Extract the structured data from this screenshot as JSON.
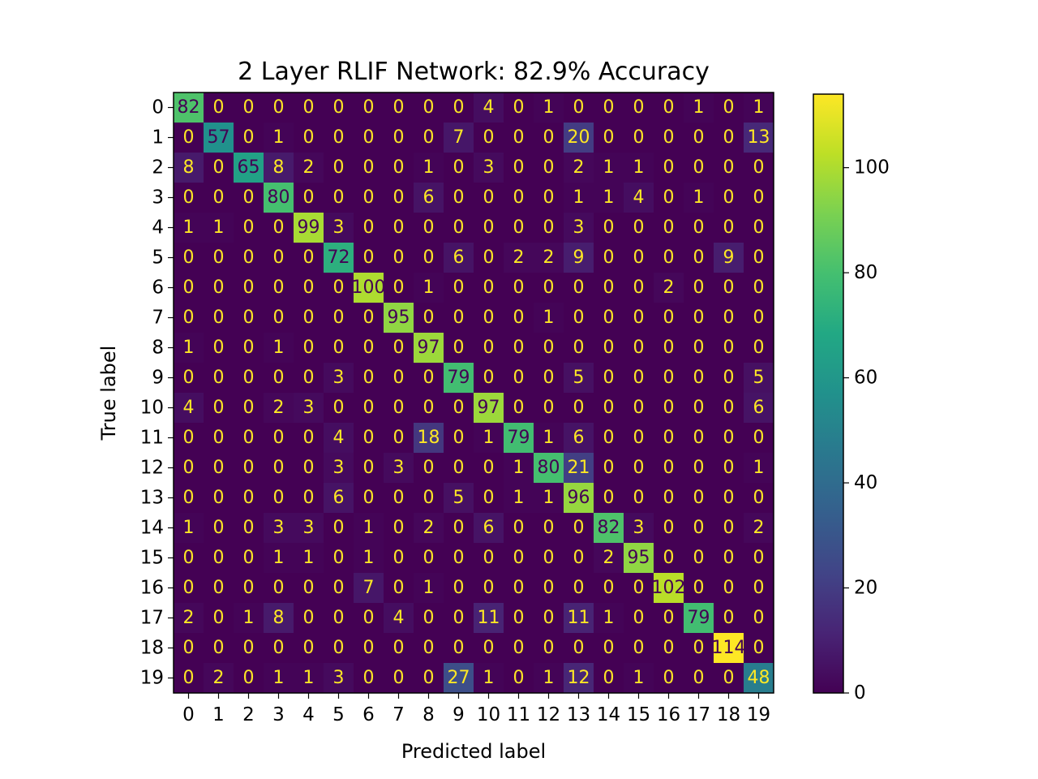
{
  "chart_data": {
    "type": "heatmap",
    "title": "2 Layer RLIF Network: 82.9% Accuracy",
    "xlabel": "Predicted label",
    "ylabel": "True label",
    "x_categories": [
      "0",
      "1",
      "2",
      "3",
      "4",
      "5",
      "6",
      "7",
      "8",
      "9",
      "10",
      "11",
      "12",
      "13",
      "14",
      "15",
      "16",
      "17",
      "18",
      "19"
    ],
    "y_categories": [
      "0",
      "1",
      "2",
      "3",
      "4",
      "5",
      "6",
      "7",
      "8",
      "9",
      "10",
      "11",
      "12",
      "13",
      "14",
      "15",
      "16",
      "17",
      "18",
      "19"
    ],
    "matrix": [
      [
        82,
        0,
        0,
        0,
        0,
        0,
        0,
        0,
        0,
        0,
        4,
        0,
        1,
        0,
        0,
        0,
        0,
        1,
        0,
        1
      ],
      [
        0,
        57,
        0,
        1,
        0,
        0,
        0,
        0,
        0,
        7,
        0,
        0,
        0,
        20,
        0,
        0,
        0,
        0,
        0,
        13
      ],
      [
        8,
        0,
        65,
        8,
        2,
        0,
        0,
        0,
        1,
        0,
        3,
        0,
        0,
        2,
        1,
        1,
        0,
        0,
        0,
        0
      ],
      [
        0,
        0,
        0,
        80,
        0,
        0,
        0,
        0,
        6,
        0,
        0,
        0,
        0,
        1,
        1,
        4,
        0,
        1,
        0,
        0
      ],
      [
        1,
        1,
        0,
        0,
        99,
        3,
        0,
        0,
        0,
        0,
        0,
        0,
        0,
        3,
        0,
        0,
        0,
        0,
        0,
        0
      ],
      [
        0,
        0,
        0,
        0,
        0,
        72,
        0,
        0,
        0,
        6,
        0,
        2,
        2,
        9,
        0,
        0,
        0,
        0,
        9,
        0
      ],
      [
        0,
        0,
        0,
        0,
        0,
        0,
        100,
        0,
        1,
        0,
        0,
        0,
        0,
        0,
        0,
        0,
        2,
        0,
        0,
        0
      ],
      [
        0,
        0,
        0,
        0,
        0,
        0,
        0,
        95,
        0,
        0,
        0,
        0,
        1,
        0,
        0,
        0,
        0,
        0,
        0,
        0
      ],
      [
        1,
        0,
        0,
        1,
        0,
        0,
        0,
        0,
        97,
        0,
        0,
        0,
        0,
        0,
        0,
        0,
        0,
        0,
        0,
        0
      ],
      [
        0,
        0,
        0,
        0,
        0,
        3,
        0,
        0,
        0,
        79,
        0,
        0,
        0,
        5,
        0,
        0,
        0,
        0,
        0,
        5
      ],
      [
        4,
        0,
        0,
        2,
        3,
        0,
        0,
        0,
        0,
        0,
        97,
        0,
        0,
        0,
        0,
        0,
        0,
        0,
        0,
        6
      ],
      [
        0,
        0,
        0,
        0,
        0,
        4,
        0,
        0,
        18,
        0,
        1,
        79,
        1,
        6,
        0,
        0,
        0,
        0,
        0,
        0
      ],
      [
        0,
        0,
        0,
        0,
        0,
        3,
        0,
        3,
        0,
        0,
        0,
        1,
        80,
        21,
        0,
        0,
        0,
        0,
        0,
        1
      ],
      [
        0,
        0,
        0,
        0,
        0,
        6,
        0,
        0,
        0,
        5,
        0,
        1,
        1,
        96,
        0,
        0,
        0,
        0,
        0,
        0
      ],
      [
        1,
        0,
        0,
        3,
        3,
        0,
        1,
        0,
        2,
        0,
        6,
        0,
        0,
        0,
        82,
        3,
        0,
        0,
        0,
        2
      ],
      [
        0,
        0,
        0,
        1,
        1,
        0,
        1,
        0,
        0,
        0,
        0,
        0,
        0,
        0,
        2,
        95,
        0,
        0,
        0,
        0
      ],
      [
        0,
        0,
        0,
        0,
        0,
        0,
        7,
        0,
        1,
        0,
        0,
        0,
        0,
        0,
        0,
        0,
        102,
        0,
        0,
        0
      ],
      [
        2,
        0,
        1,
        8,
        0,
        0,
        0,
        4,
        0,
        0,
        11,
        0,
        0,
        11,
        1,
        0,
        0,
        79,
        0,
        0
      ],
      [
        0,
        0,
        0,
        0,
        0,
        0,
        0,
        0,
        0,
        0,
        0,
        0,
        0,
        0,
        0,
        0,
        0,
        0,
        114,
        0
      ],
      [
        0,
        2,
        0,
        1,
        1,
        3,
        0,
        0,
        0,
        27,
        1,
        0,
        1,
        12,
        0,
        1,
        0,
        0,
        0,
        48
      ]
    ],
    "colormap": "viridis",
    "vmin": 0,
    "vmax": 114,
    "colorbar_ticks": [
      0,
      20,
      40,
      60,
      80,
      100
    ],
    "grid": false,
    "legend": "colorbar right"
  }
}
